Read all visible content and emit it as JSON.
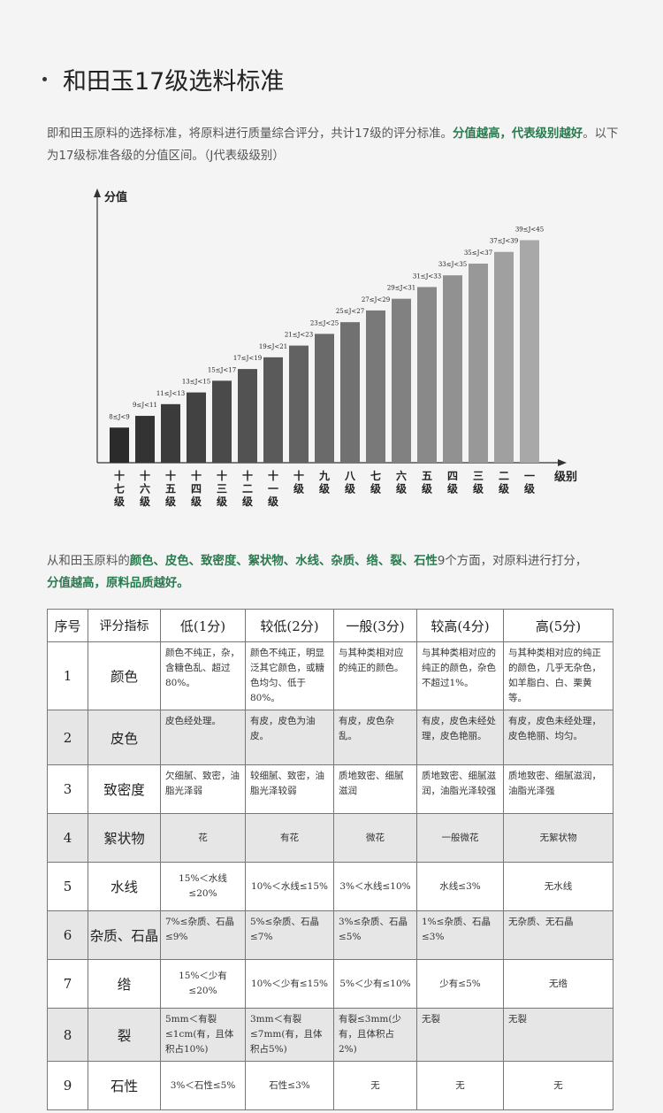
{
  "page": {
    "title": "和田玉17级选料标准",
    "intro_normal": "即和田玉原料的选择标准，将原料进行质量综合评分，共计17级的评分标准。",
    "intro_highlight": "分值越高，代表级别越好",
    "intro_tail": "。以下为17级标准各级的分值区间。（J代表级级别）",
    "section2_lead": "从和田玉原料的",
    "section2_highlight": "颜色、皮色、致密度、絮状物、水线、杂质、绺、裂、石性",
    "section2_tail": "9个方面，对原料进行打分，",
    "section2_line2": "分值越高，原料品质越好。"
  },
  "chart_data": {
    "type": "bar",
    "ylabel": "分值",
    "xlabel": "级别",
    "categories": [
      "十七级",
      "十六级",
      "十五级",
      "十四级",
      "十三级",
      "十二级",
      "十一级",
      "十级",
      "九级",
      "八级",
      "七级",
      "六级",
      "五级",
      "四级",
      "三级",
      "二级",
      "一级"
    ],
    "range_labels": [
      "8≤J<9",
      "9≤J<11",
      "11≤J<13",
      "13≤J<15",
      "15≤J<17",
      "17≤J<19",
      "19≤J<21",
      "21≤J<23",
      "23≤J<25",
      "25≤J<27",
      "27≤J<29",
      "29≤J<31",
      "31≤J<33",
      "33≤J<35",
      "35≤J<37",
      "37≤J<39",
      "39≤J<45"
    ],
    "values": [
      9,
      11,
      13,
      15,
      17,
      19,
      21,
      23,
      25,
      27,
      29,
      31,
      33,
      35,
      37,
      39,
      41
    ],
    "ylim": [
      3,
      45
    ],
    "color_start": "#2b2b2b",
    "color_end": "#a8a8a8"
  },
  "table": {
    "headers": [
      "序号",
      "评分指标",
      "低(1分)",
      "较低(2分)",
      "一般(3分)",
      "较高(4分)",
      "高(5分)"
    ],
    "rows": [
      {
        "num": "1",
        "name": "颜色",
        "cells": [
          "颜色不纯正，杂，含糖色乱、超过80%。",
          "颜色不纯正，明显泛其它颜色，或糖色均匀、低于80%。",
          "与其种类相对应的纯正的颜色。",
          "与其种类相对应的纯正的颜色，杂色不超过1%。",
          "与其种类相对应的纯正的颜色，几乎无杂色，如羊脂白、白、栗黄等。"
        ]
      },
      {
        "num": "2",
        "name": "皮色",
        "cells": [
          "皮色经处理。",
          "有皮，皮色为油皮。",
          "有皮，皮色杂乱。",
          "有皮，皮色未经处理，皮色艳丽。",
          "有皮，皮色未经处理，皮色艳丽、均匀。"
        ]
      },
      {
        "num": "3",
        "name": "致密度",
        "cells": [
          "欠细腻、致密，油脂光泽弱",
          "较细腻、致密，油脂光泽较弱",
          "质地致密、细腻滋润",
          "质地致密、细腻滋润，油脂光泽较强",
          "质地致密、细腻滋润，油脂光泽强"
        ]
      },
      {
        "num": "4",
        "name": "絮状物",
        "cells": [
          "花",
          "有花",
          "微花",
          "一般微花",
          "无絮状物"
        ]
      },
      {
        "num": "5",
        "name": "水线",
        "cells": [
          "15%＜水线≤20%",
          "10%＜水线≤15%",
          "3%＜水线≤10%",
          "水线≤3%",
          "无水线"
        ]
      },
      {
        "num": "6",
        "name": "杂质、石晶",
        "cells": [
          "7%≤杂质、石晶≤9%",
          "5%≤杂质、石晶≤7%",
          "3%≤杂质、石晶≤5%",
          "1%≤杂质、石晶≤3%",
          "无杂质、无石晶"
        ]
      },
      {
        "num": "7",
        "name": "绺",
        "cells": [
          "15%＜少有≤20%",
          "10%＜少有≤15%",
          "5%＜少有≤10%",
          "少有≤5%",
          "无绺"
        ]
      },
      {
        "num": "8",
        "name": "裂",
        "cells": [
          "5mm＜有裂≤1cm(有，且体积占10%)",
          "3mm＜有裂≤7mm(有，且体积占5%)",
          "有裂≤3mm(少有，且体积占2%)",
          "无裂",
          "无裂"
        ]
      },
      {
        "num": "9",
        "name": "石性",
        "cells": [
          "3%＜石性≤5%",
          "石性≤3%",
          "无",
          "无",
          "无"
        ]
      }
    ]
  }
}
